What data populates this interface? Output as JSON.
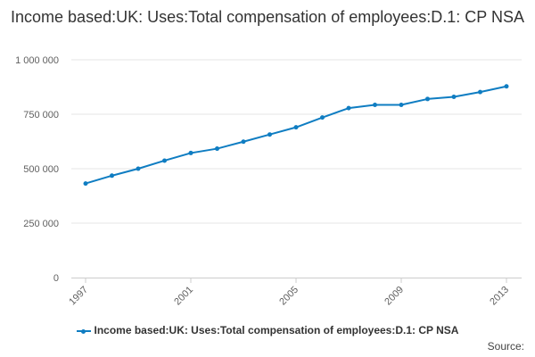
{
  "chart_data": {
    "type": "line",
    "title": "Income based:UK: Uses:Total compensation of employees:D.1: CP NSA",
    "xlabel": "",
    "ylabel": "",
    "x": [
      1997,
      1998,
      1999,
      2000,
      2001,
      2002,
      2003,
      2004,
      2005,
      2006,
      2007,
      2008,
      2009,
      2010,
      2011,
      2012,
      2013
    ],
    "xticks": [
      "1997",
      "2001",
      "2005",
      "2009",
      "2013"
    ],
    "yticks": [
      "0",
      "250 000",
      "500 000",
      "750 000",
      "1 000 000"
    ],
    "ylim": [
      0,
      1000000
    ],
    "grid": true,
    "legend_position": "bottom",
    "series": [
      {
        "name": "Income based:UK: Uses:Total compensation of employees:D.1: CP NSA",
        "color": "#0f7dc2",
        "values": [
          432000,
          468000,
          500000,
          537000,
          572000,
          592000,
          624000,
          657000,
          690000,
          735000,
          778000,
          793000,
          793000,
          820000,
          830000,
          852000,
          878000
        ]
      }
    ]
  },
  "legend": {
    "label": "Income based:UK: Uses:Total compensation of employees:D.1: CP NSA"
  },
  "source_label": "Source:"
}
